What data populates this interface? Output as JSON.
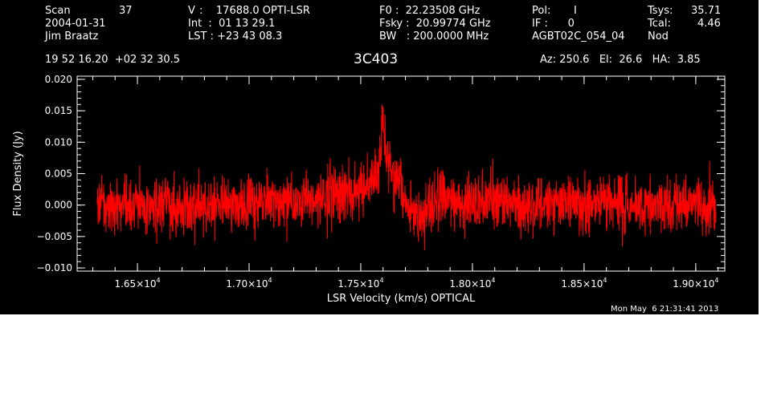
{
  "header": {
    "row1": [
      {
        "label": "Scan",
        "value": "37"
      },
      {
        "label": "V",
        "value": ":    17688.0 OPTI-LSR"
      },
      {
        "label": "F0",
        "value": ":  22.23508 GHz"
      },
      {
        "label": "Pol:",
        "value": "I"
      },
      {
        "label": "Tsys:",
        "value": "35.71"
      }
    ],
    "date": "2004-01-31",
    "int": "Int  :  01 13 29.1",
    "fsky": "Fsky :  20.99774 GHz",
    "if": "IF :      0",
    "tcal_label": "Tcal:",
    "tcal_value": "4.46",
    "observer": "Jim Braatz",
    "lst": "LST : +23 43 08.3",
    "bw": "BW   : 200.0000 MHz",
    "project": "AGBT02C_054_04",
    "proc": "Nod",
    "coords": "19 52 16.20  +02 32 30.5",
    "az_el_ha": "Az: 250.6   El:  26.6   HA:  3.85"
  },
  "footer": {
    "timestamp": "Mon May  6 21:31:41 2013"
  },
  "colors": {
    "background": "#000000",
    "foreground": "#ffffff",
    "trace": "#ff0000",
    "page": "#ffffff"
  },
  "chart_data": {
    "type": "line",
    "title": "3C403",
    "xlabel": "LSR Velocity (km/s) OPTICAL",
    "ylabel": "Flux Density (Jy)",
    "xlim": [
      16230,
      19130
    ],
    "ylim": [
      -0.0105,
      0.0205
    ],
    "x_ticks": [
      {
        "value": 16500,
        "label": "1.65×10",
        "exp": "4"
      },
      {
        "value": 17000,
        "label": "1.70×10",
        "exp": "4"
      },
      {
        "value": 17500,
        "label": "1.75×10",
        "exp": "4"
      },
      {
        "value": 18000,
        "label": "1.80×10",
        "exp": "4"
      },
      {
        "value": 18500,
        "label": "1.85×10",
        "exp": "4"
      },
      {
        "value": 19000,
        "label": "1.90×10",
        "exp": "4"
      }
    ],
    "y_ticks": [
      {
        "value": -0.01,
        "label": "−0.010"
      },
      {
        "value": -0.005,
        "label": "−0.005"
      },
      {
        "value": 0.0,
        "label": "0.000"
      },
      {
        "value": 0.005,
        "label": "0.005"
      },
      {
        "value": 0.01,
        "label": "0.010"
      },
      {
        "value": 0.015,
        "label": "0.015"
      },
      {
        "value": 0.02,
        "label": "0.020"
      }
    ],
    "series": [
      {
        "color": "#ff0000",
        "x": [
          16320,
          16380,
          16440,
          16500,
          16560,
          16620,
          16680,
          16740,
          16800,
          16860,
          16920,
          16980,
          17040,
          17100,
          17160,
          17220,
          17280,
          17340,
          17400,
          17440,
          17480,
          17500,
          17520,
          17540,
          17560,
          17580,
          17590,
          17600,
          17610,
          17620,
          17640,
          17660,
          17680,
          17700,
          17720,
          17740,
          17780,
          17820,
          17840,
          17860,
          17900,
          17960,
          18020,
          18080,
          18140,
          18200,
          18260,
          18320,
          18380,
          18440,
          18500,
          18560,
          18620,
          18680,
          18740,
          18800,
          18860,
          18920,
          18980,
          19030,
          19090
        ],
        "y": [
          0.0006,
          0.0002,
          -0.0004,
          0.0003,
          -0.0002,
          0.0004,
          -0.0001,
          0.0002,
          -0.0003,
          0.0005,
          0.0001,
          -0.0002,
          0.0003,
          0.0006,
          0.0002,
          0.0004,
          0.0008,
          0.0012,
          0.0016,
          0.0018,
          0.0022,
          0.0026,
          0.003,
          0.0034,
          0.0045,
          0.0058,
          0.0072,
          0.009,
          0.0076,
          0.006,
          0.0048,
          0.0036,
          0.0024,
          0.001,
          -0.0006,
          -0.0012,
          -0.001,
          -0.0006,
          0.0008,
          0.0014,
          0.0004,
          0.0002,
          -0.0001,
          0.0003,
          0.0005,
          0.0,
          0.0004,
          -0.0002,
          0.0003,
          0.0001,
          -0.0002,
          0.0002,
          0.0004,
          -0.0001,
          0.0002,
          0.0,
          0.0003,
          -0.0001,
          0.0002,
          0.0001,
          0.0
        ],
        "noise_rms_jy": 0.0022
      }
    ]
  }
}
